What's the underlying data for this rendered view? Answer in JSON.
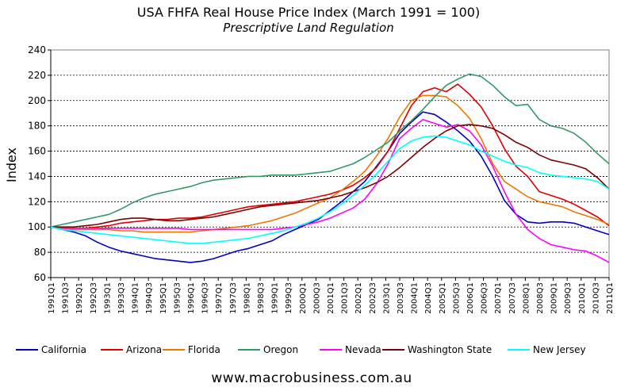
{
  "chart_data": {
    "type": "line",
    "title": "USA FHFA Real House Price Index (March 1991 = 100)",
    "subtitle": "Prescriptive Land Regulation",
    "ylabel": "Index",
    "xlabel": "",
    "ylim": [
      60,
      240
    ],
    "yticks": [
      60,
      80,
      100,
      120,
      140,
      160,
      180,
      200,
      220,
      240
    ],
    "grid": "horizontal dashed",
    "legend_position": "bottom",
    "footer": "www.macrobusiness.com.au",
    "x_tick_labels": [
      "1991Q1",
      "1991Q3",
      "1992Q1",
      "1992Q3",
      "1993Q1",
      "1993Q3",
      "1994Q1",
      "1994Q3",
      "1995Q1",
      "1995Q3",
      "1996Q1",
      "1996Q3",
      "1997Q1",
      "1997Q3",
      "1998Q1",
      "1998Q3",
      "1999Q1",
      "1999Q3",
      "2000Q1",
      "2000Q3",
      "2001Q1",
      "2001Q3",
      "2002Q1",
      "2002Q3",
      "2003Q1",
      "2003Q3",
      "2004Q1",
      "2004Q3",
      "2005Q1",
      "2005Q3",
      "2006Q1",
      "2006Q3",
      "2007Q1",
      "2007Q3",
      "2008Q1",
      "2008Q3",
      "2009Q1",
      "2009Q3",
      "2010Q1",
      "2010Q3",
      "2011Q1"
    ],
    "series": [
      {
        "name": "California",
        "color": "#0000C0",
        "values": [
          100,
          98,
          96,
          93,
          88,
          84,
          81,
          79,
          77,
          75,
          74,
          73,
          72,
          73,
          75,
          78,
          81,
          83,
          86,
          89,
          94,
          98,
          102,
          106,
          113,
          120,
          128,
          136,
          148,
          160,
          174,
          183,
          191,
          189,
          183,
          176,
          168,
          156,
          140,
          121,
          110,
          104,
          103,
          104,
          104,
          103,
          100,
          97,
          94
        ]
      },
      {
        "name": "Arizona",
        "color": "#E00000",
        "values": [
          100,
          99,
          99,
          99,
          100,
          101,
          103,
          104,
          105,
          106,
          106,
          107,
          107,
          108,
          110,
          112,
          114,
          116,
          117,
          118,
          119,
          120,
          122,
          124,
          126,
          129,
          133,
          139,
          147,
          160,
          178,
          196,
          207,
          210,
          207,
          213,
          205,
          195,
          180,
          162,
          148,
          140,
          128,
          125,
          122,
          118,
          113,
          108,
          101
        ]
      },
      {
        "name": "Florida",
        "color": "#EE7700",
        "values": [
          100,
          99,
          98,
          98,
          98,
          98,
          97,
          97,
          96,
          96,
          96,
          96,
          96,
          97,
          98,
          99,
          100,
          101,
          103,
          105,
          108,
          111,
          115,
          119,
          123,
          129,
          136,
          144,
          156,
          170,
          187,
          200,
          204,
          204,
          203,
          196,
          186,
          170,
          150,
          136,
          130,
          124,
          120,
          118,
          116,
          112,
          109,
          106,
          102
        ]
      },
      {
        "name": "Oregon",
        "color": "#339966",
        "values": [
          100,
          102,
          104,
          106,
          108,
          110,
          114,
          119,
          123,
          126,
          128,
          130,
          132,
          135,
          137,
          138,
          139,
          140,
          140,
          141,
          141,
          141,
          142,
          143,
          144,
          147,
          150,
          155,
          161,
          167,
          176,
          184,
          193,
          203,
          212,
          217,
          221,
          219,
          212,
          203,
          196,
          197,
          185,
          180,
          178,
          174,
          167,
          158,
          150
        ]
      },
      {
        "name": "Nevada",
        "color": "#FF00FF",
        "values": [
          100,
          99,
          99,
          99,
          99,
          99,
          99,
          99,
          99,
          99,
          99,
          99,
          98,
          98,
          98,
          98,
          98,
          98,
          98,
          98,
          99,
          100,
          102,
          104,
          107,
          111,
          115,
          122,
          134,
          150,
          170,
          178,
          185,
          182,
          179,
          181,
          176,
          165,
          148,
          128,
          110,
          98,
          91,
          86,
          84,
          82,
          81,
          77,
          72
        ]
      },
      {
        "name": "Washington State",
        "color": "#800000",
        "values": [
          100,
          100,
          100,
          101,
          102,
          104,
          106,
          107,
          107,
          106,
          105,
          105,
          106,
          107,
          108,
          110,
          112,
          114,
          116,
          117,
          118,
          119,
          120,
          121,
          123,
          125,
          128,
          131,
          135,
          140,
          147,
          155,
          163,
          170,
          176,
          180,
          181,
          180,
          178,
          173,
          167,
          163,
          157,
          153,
          151,
          149,
          146,
          139,
          130
        ]
      },
      {
        "name": "New Jersey",
        "color": "#00FFFF",
        "values": [
          100,
          98,
          97,
          96,
          95,
          94,
          93,
          92,
          91,
          90,
          89,
          88,
          87,
          87,
          88,
          89,
          90,
          91,
          93,
          95,
          97,
          100,
          103,
          107,
          112,
          118,
          125,
          133,
          142,
          152,
          162,
          168,
          171,
          172,
          171,
          168,
          165,
          160,
          156,
          152,
          149,
          147,
          143,
          141,
          140,
          139,
          138,
          136,
          130
        ]
      }
    ]
  }
}
